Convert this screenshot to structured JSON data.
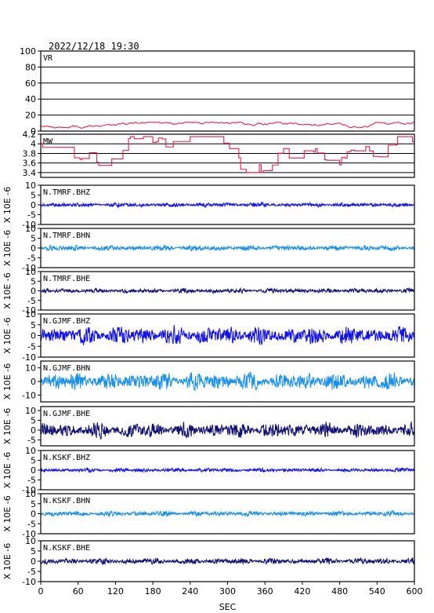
{
  "timestamp": "2022/12/18  19:30",
  "chart_data": {
    "type": "line",
    "x_axis": {
      "label": "SEC",
      "range": [
        0,
        600
      ],
      "ticks": [
        0,
        60,
        120,
        180,
        240,
        300,
        360,
        420,
        480,
        540,
        600
      ]
    },
    "y_unit_label": "X 10E -6",
    "panels": [
      {
        "name": "VR",
        "kind": "vr",
        "ylim": [
          0,
          100
        ],
        "yticks": [
          0,
          20,
          40,
          60,
          80,
          100
        ],
        "grid": true,
        "color": "#e8204a",
        "baseline": 7,
        "amplitude": 4
      },
      {
        "name": "MW",
        "kind": "mw",
        "ylim": [
          3.3,
          4.2
        ],
        "yticks": [
          3.4,
          3.6,
          3.8,
          4.0,
          4.2
        ],
        "grid": true,
        "color": "#e8204a"
      },
      {
        "name": "N.TMRF.BHZ",
        "kind": "wave",
        "ylim": [
          -10,
          10
        ],
        "yticks": [
          -10,
          -5,
          0,
          5,
          10
        ],
        "color": "#1010ee",
        "amplitude": 1.2
      },
      {
        "name": "N.TMRF.BHN",
        "kind": "wave",
        "ylim": [
          -10,
          10
        ],
        "yticks": [
          -10,
          -5,
          0,
          5,
          10
        ],
        "color": "#1a8fe8",
        "amplitude": 1.5
      },
      {
        "name": "N.TMRF.BHE",
        "kind": "wave",
        "ylim": [
          -10,
          10
        ],
        "yticks": [
          -10,
          -5,
          0,
          5,
          10
        ],
        "color": "#101070",
        "amplitude": 1.3
      },
      {
        "name": "N.GJMF.BHZ",
        "kind": "wave",
        "ylim": [
          -10,
          10
        ],
        "yticks": [
          -10,
          -5,
          0,
          5,
          10
        ],
        "color": "#1010ee",
        "amplitude": 4.5
      },
      {
        "name": "N.GJMF.BHN",
        "kind": "wave",
        "ylim": [
          -15,
          15
        ],
        "yticks": [
          -10,
          0,
          10
        ],
        "color": "#1a8fe8",
        "amplitude": 7
      },
      {
        "name": "N.GJMF.BHE",
        "kind": "wave",
        "ylim": [
          -8,
          12
        ],
        "yticks": [
          -5,
          0,
          5,
          10
        ],
        "color": "#101070",
        "amplitude": 4
      },
      {
        "name": "N.KSKF.BHZ",
        "kind": "wave",
        "ylim": [
          -10,
          10
        ],
        "yticks": [
          -10,
          -5,
          0,
          5,
          10
        ],
        "color": "#1010ee",
        "amplitude": 1.1
      },
      {
        "name": "N.KSKF.BHN",
        "kind": "wave",
        "ylim": [
          -10,
          10
        ],
        "yticks": [
          -10,
          -5,
          0,
          5,
          10
        ],
        "color": "#1a8fe8",
        "amplitude": 1.4
      },
      {
        "name": "N.KSKF.BHE",
        "kind": "wave",
        "ylim": [
          -10,
          10
        ],
        "yticks": [
          -10,
          -5,
          0,
          5,
          10
        ],
        "color": "#101070",
        "amplitude": 1.6
      }
    ]
  }
}
